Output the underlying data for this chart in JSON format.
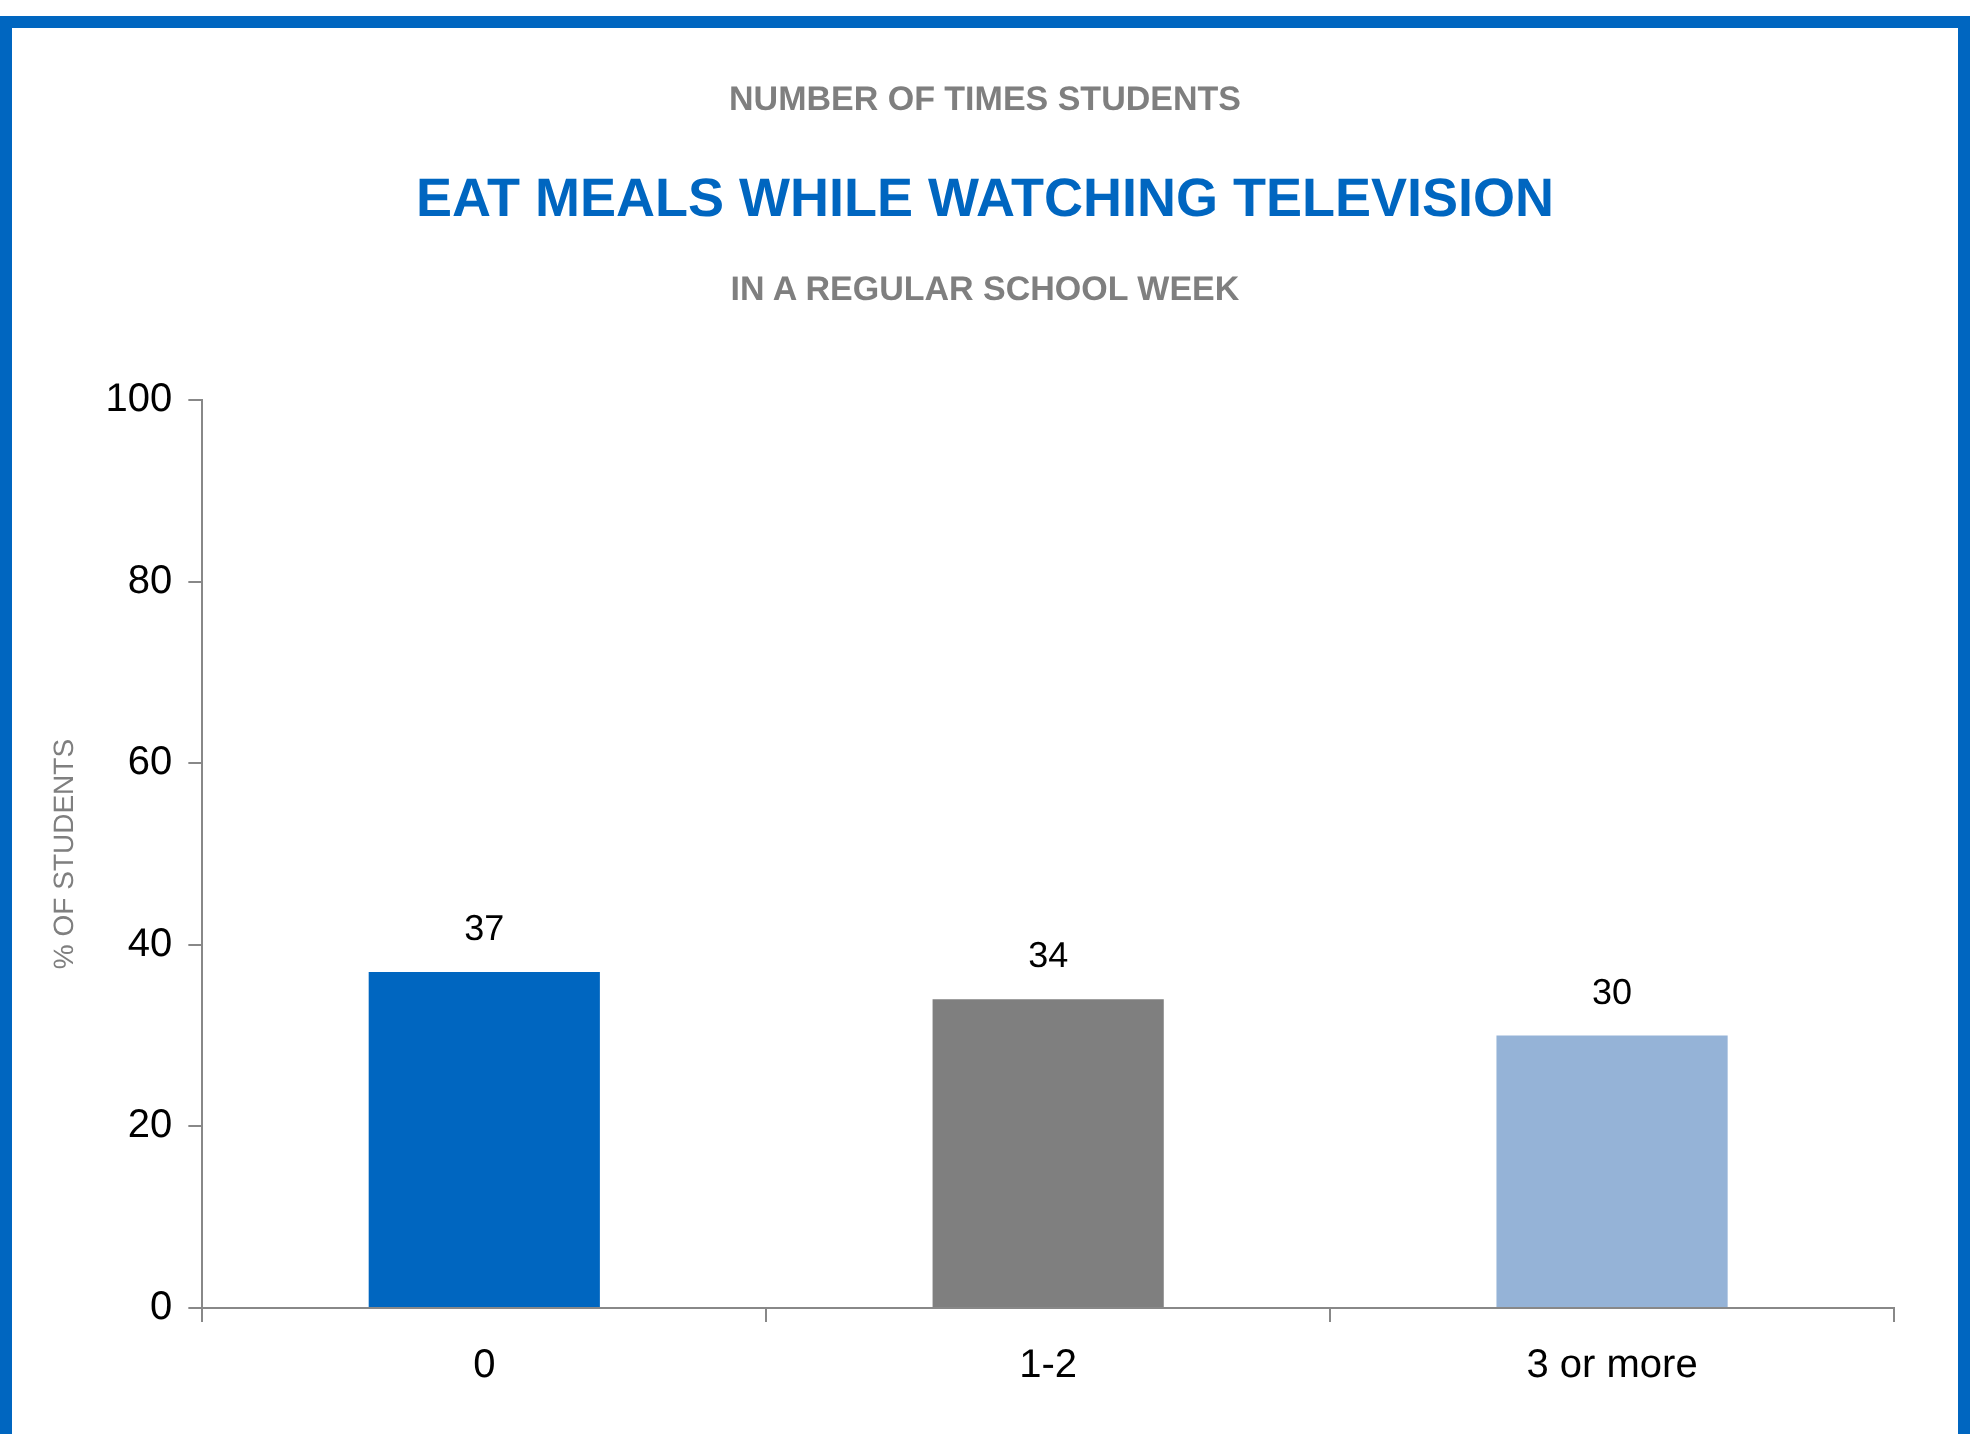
{
  "chart_data": {
    "type": "bar",
    "annotations": [
      "NUMBER OF TIMES STUDENTS"
    ],
    "title": "EAT MEALS WHILE WATCHING TELEVISION",
    "subtitle": "IN A REGULAR SCHOOL WEEK",
    "ylabel": "% OF STUDENTS",
    "categories": [
      "0",
      "1-2",
      "3 or more"
    ],
    "values": [
      37,
      34,
      30
    ],
    "colors": [
      "#0066c0",
      "#7f7f7f",
      "#95b3d7"
    ],
    "ylim": [
      0,
      100
    ],
    "yticks": [
      0,
      20,
      40,
      60,
      80,
      100
    ],
    "grid": false,
    "legend": false,
    "data_labels": true
  }
}
